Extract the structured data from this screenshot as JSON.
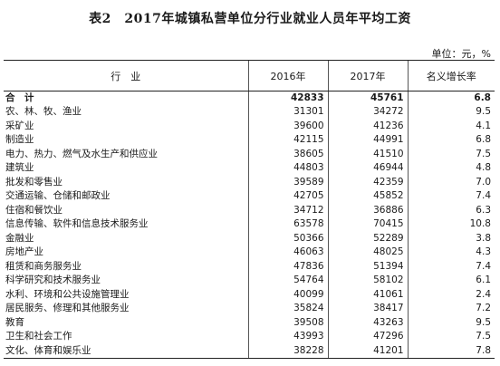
{
  "title": "表2　2017年城镇私营单位分行业就业人员年平均工资",
  "unit": "单位：元，%",
  "headers": {
    "industry": "行　业",
    "y2016": "2016年",
    "y2017": "2017年",
    "growth": "名义增长率"
  },
  "total": {
    "name": "合　计",
    "y2016": "42833",
    "y2017": "45761",
    "growth": "6.8"
  },
  "rows": [
    {
      "name": "农、林、牧、渔业",
      "y2016": "31301",
      "y2017": "34272",
      "growth": "9.5"
    },
    {
      "name": "采矿业",
      "y2016": "39600",
      "y2017": "41236",
      "growth": "4.1"
    },
    {
      "name": "制造业",
      "y2016": "42115",
      "y2017": "44991",
      "growth": "6.8"
    },
    {
      "name": "电力、热力、燃气及水生产和供应业",
      "y2016": "38605",
      "y2017": "41510",
      "growth": "7.5"
    },
    {
      "name": "建筑业",
      "y2016": "44803",
      "y2017": "46944",
      "growth": "4.8"
    },
    {
      "name": "批发和零售业",
      "y2016": "39589",
      "y2017": "42359",
      "growth": "7.0"
    },
    {
      "name": "交通运输、仓储和邮政业",
      "y2016": "42705",
      "y2017": "45852",
      "growth": "7.4"
    },
    {
      "name": "住宿和餐饮业",
      "y2016": "34712",
      "y2017": "36886",
      "growth": "6.3"
    },
    {
      "name": "信息传输、软件和信息技术服务业",
      "y2016": "63578",
      "y2017": "70415",
      "growth": "10.8"
    },
    {
      "name": "金融业",
      "y2016": "50366",
      "y2017": "52289",
      "growth": "3.8"
    },
    {
      "name": "房地产业",
      "y2016": "46063",
      "y2017": "48025",
      "growth": "4.3"
    },
    {
      "name": "租赁和商务服务业",
      "y2016": "47836",
      "y2017": "51394",
      "growth": "7.4"
    },
    {
      "name": "科学研究和技术服务业",
      "y2016": "54764",
      "y2017": "58102",
      "growth": "6.1"
    },
    {
      "name": "水利、环境和公共设施管理业",
      "y2016": "40099",
      "y2017": "41061",
      "growth": "2.4"
    },
    {
      "name": "居民服务、修理和其他服务业",
      "y2016": "35824",
      "y2017": "38417",
      "growth": "7.2"
    },
    {
      "name": "教育",
      "y2016": "39508",
      "y2017": "43263",
      "growth": "9.5"
    },
    {
      "name": "卫生和社会工作",
      "y2016": "43993",
      "y2017": "47296",
      "growth": "7.5"
    },
    {
      "name": "文化、体育和娱乐业",
      "y2016": "38228",
      "y2017": "41201",
      "growth": "7.8"
    }
  ]
}
